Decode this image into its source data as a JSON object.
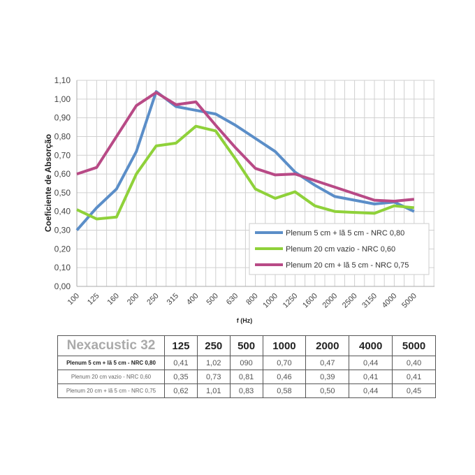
{
  "chart_data": {
    "type": "line",
    "title": "",
    "xlabel": "f (Hz)",
    "ylabel": "Coeficiente de Absorção",
    "ylim": [
      0,
      1.1
    ],
    "yticks": [
      "0,00",
      "0,10",
      "0,20",
      "0,30",
      "0,40",
      "0,50",
      "0,60",
      "0,70",
      "0,80",
      "0,90",
      "1,00",
      "1,10"
    ],
    "grid": true,
    "legend_position": "bottom-right",
    "categories": [
      "100",
      "125",
      "160",
      "200",
      "250",
      "315",
      "400",
      "500",
      "630",
      "800",
      "1000",
      "1250",
      "1600",
      "2000",
      "2500",
      "3150",
      "4000",
      "5000"
    ],
    "series": [
      {
        "name": "Plenum 5 cm + lã 5 cm - NRC 0,80",
        "color": "#5b8ec8",
        "values": [
          0.3,
          0.42,
          0.52,
          0.72,
          1.04,
          0.96,
          0.94,
          0.92,
          0.86,
          0.79,
          0.72,
          0.61,
          0.54,
          0.48,
          0.46,
          0.44,
          0.45,
          0.4
        ]
      },
      {
        "name": "Plenum 20 cm vazio - NRC 0,60",
        "color": "#8fd13a",
        "values": [
          0.41,
          0.36,
          0.37,
          0.6,
          0.75,
          0.765,
          0.855,
          0.83,
          0.68,
          0.52,
          0.47,
          0.505,
          0.43,
          0.4,
          0.395,
          0.39,
          0.43,
          0.42
        ]
      },
      {
        "name": "Plenum 20 cm  + lã 5 cm - NRC 0,75",
        "color": "#b84a86",
        "values": [
          0.6,
          0.635,
          0.8,
          0.965,
          1.035,
          0.97,
          0.985,
          0.86,
          0.74,
          0.63,
          0.595,
          0.6,
          0.565,
          0.53,
          0.495,
          0.46,
          0.455,
          0.465
        ]
      }
    ]
  },
  "table": {
    "brand": "Nexacustic 32",
    "headers": [
      "125",
      "250",
      "500",
      "1000",
      "2000",
      "4000",
      "5000"
    ],
    "rows": [
      {
        "label": "Plenum 5 cm + lã 5 cm - NRC 0,80",
        "values": [
          "0,41",
          "1,02",
          "090",
          "0,70",
          "0,47",
          "0,44",
          "0,40"
        ]
      },
      {
        "label": "Plenum 20 cm vazio - NRC 0,60",
        "values": [
          "0,35",
          "0,73",
          "0,81",
          "0,46",
          "0,39",
          "0,41",
          "0,41"
        ]
      },
      {
        "label": "Plenum 20 cm + lã 5 cm - NRC 0,75",
        "values": [
          "0,62",
          "1,01",
          "0,83",
          "0,58",
          "0,50",
          "0,44",
          "0,45"
        ]
      }
    ]
  }
}
